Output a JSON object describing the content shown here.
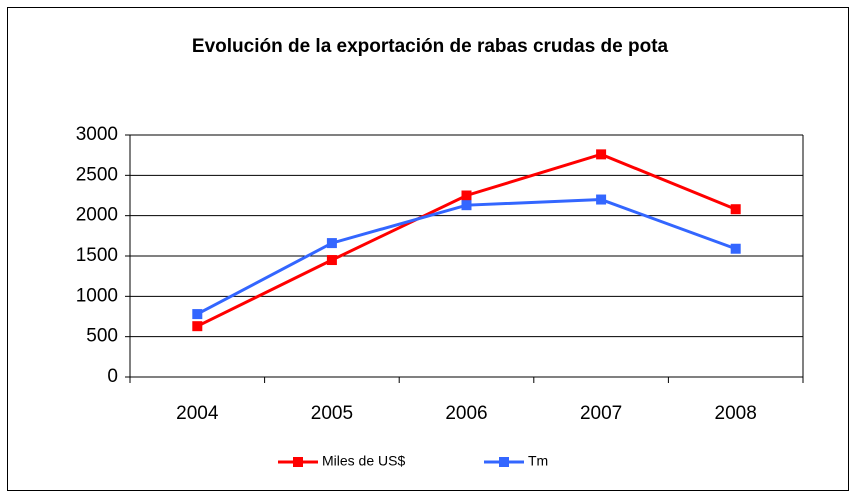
{
  "chart_data": {
    "type": "line",
    "title": "Evolución de la exportación de rabas crudas de pota",
    "categories": [
      "2004",
      "2005",
      "2006",
      "2007",
      "2008"
    ],
    "series": [
      {
        "name": "Miles de US$",
        "color": "#ff0000",
        "values": [
          630,
          1450,
          2250,
          2760,
          2080
        ]
      },
      {
        "name": "Tm",
        "color": "#3366ff",
        "values": [
          780,
          1660,
          2130,
          2200,
          1590
        ]
      }
    ],
    "ylim": [
      0,
      3000
    ],
    "yticks": [
      0,
      500,
      1000,
      1500,
      2000,
      2500,
      3000
    ],
    "grid": true,
    "legend": "bottom"
  }
}
